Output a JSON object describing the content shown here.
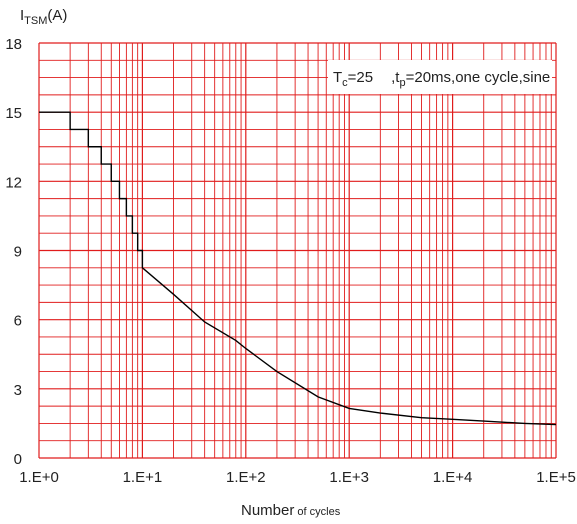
{
  "chart_data": {
    "type": "line",
    "title": "",
    "ylabel_main": "I",
    "ylabel_sub": "TSM",
    "ylabel_unit": "(A)",
    "xlabel_main": "Number",
    "xlabel_rest": " of cycles",
    "xscale": "log",
    "xlim": [
      1,
      100000
    ],
    "ylim": [
      0,
      18
    ],
    "grid": true,
    "grid_color": "#e01c1c",
    "line_color": "#000000",
    "x_tick_labels": [
      "1.E+0",
      "1.E+1",
      "1.E+2",
      "1.E+3",
      "1.E+4",
      "1.E+5"
    ],
    "x_tick_values": [
      1,
      10,
      100,
      1000,
      10000,
      100000
    ],
    "y_tick_labels": [
      "0",
      "3",
      "6",
      "9",
      "12",
      "15",
      "18"
    ],
    "y_tick_values": [
      0,
      3,
      6,
      9,
      12,
      15,
      18
    ],
    "annotation": {
      "t_main": "T",
      "t_sub": "c",
      "t_value": "=25",
      "tp_main": ",t",
      "tp_sub": "p",
      "tp_rest": "=20ms,one cycle,sine"
    },
    "series": [
      {
        "x": [
          1,
          2,
          2,
          3,
          3,
          4,
          4,
          5,
          5,
          6,
          6,
          7,
          7,
          8,
          8,
          9,
          9,
          10,
          10,
          20,
          40,
          80,
          100,
          200,
          500,
          1000,
          2000,
          5000,
          10000,
          20000,
          50000,
          100000
        ],
        "y": [
          15,
          15,
          14.25,
          14.25,
          13.5,
          13.5,
          12.75,
          12.75,
          12,
          12,
          11.25,
          11.25,
          10.5,
          10.5,
          9.75,
          9.75,
          9,
          9,
          8.25,
          7.1,
          5.9,
          5.1,
          4.75,
          3.75,
          2.65,
          2.15,
          1.95,
          1.75,
          1.68,
          1.6,
          1.5,
          1.45
        ]
      }
    ]
  }
}
